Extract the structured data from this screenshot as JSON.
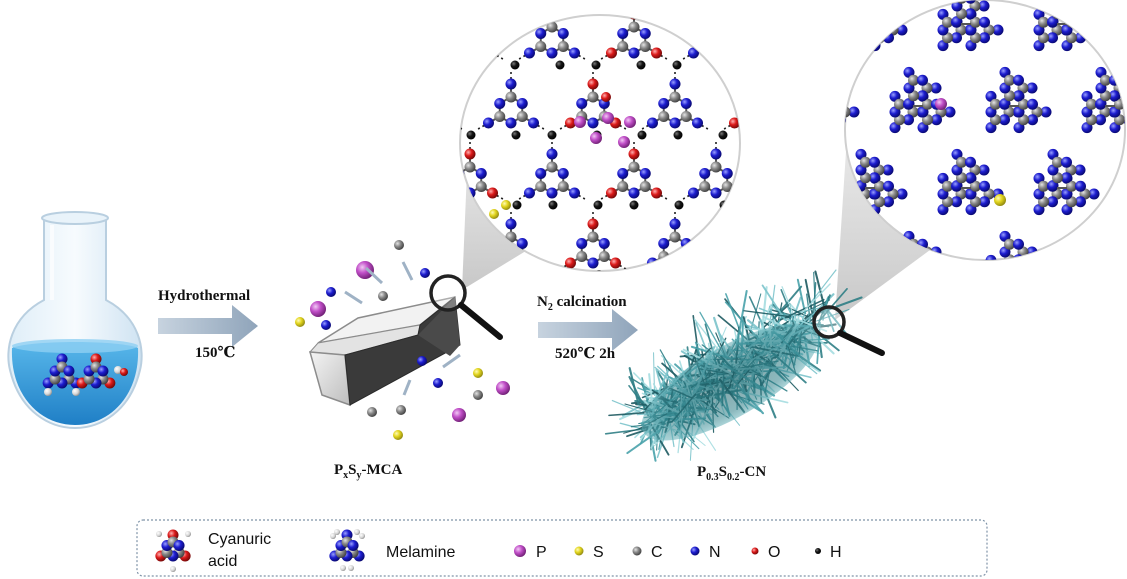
{
  "step1": {
    "label": "Hydrothermal",
    "temperature": "150℃"
  },
  "precursor": {
    "label_base": "P",
    "sub1": "x",
    "mid": "S",
    "sub2": "y",
    "suffix": "-MCA"
  },
  "step2": {
    "label_pre": "N",
    "label_sub": "2",
    "label_post": " calcination",
    "conditions": "520℃  2h"
  },
  "product": {
    "base1": "P",
    "sub1": "0.3",
    "base2": "S",
    "sub2": "0.2",
    "suffix": "-CN"
  },
  "legend": {
    "items": [
      {
        "label": "Cyanuric",
        "label2": "acid",
        "icon": "cyanuric-acid-molecule-icon"
      },
      {
        "label": "Melamine",
        "icon": "melamine-molecule-icon"
      },
      {
        "label": "P",
        "color": "#c14fc8"
      },
      {
        "label": "S",
        "color": "#d9cd1b"
      },
      {
        "label": "C",
        "color": "#858585"
      },
      {
        "label": "N",
        "color": "#1616c6"
      },
      {
        "label": "O",
        "color": "#d61818"
      },
      {
        "label": "H",
        "color": "#111111"
      }
    ]
  },
  "colors": {
    "P": "#c14fc8",
    "S": "#d9cd1b",
    "C": "#858585",
    "N": "#1616c6",
    "O": "#d61818",
    "H": "#111111",
    "fiber": "#2f7f86",
    "arrow": "#a9b9c9"
  }
}
